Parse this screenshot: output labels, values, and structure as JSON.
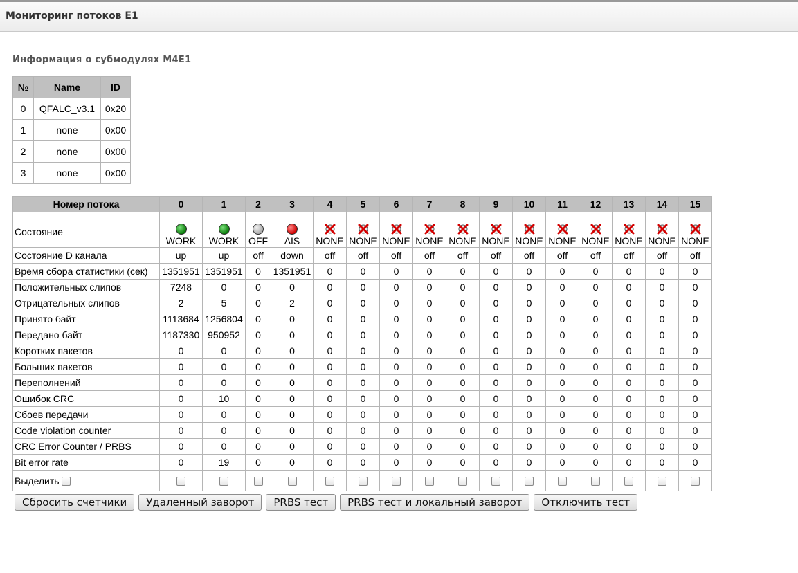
{
  "header": {
    "title": "Мониторинг потоков Е1"
  },
  "submodules": {
    "title": "Информация о субмодулях М4Е1",
    "columns": [
      "№",
      "Name",
      "ID"
    ],
    "rows": [
      [
        "0",
        "QFALC_v3.1",
        "0x20"
      ],
      [
        "1",
        "none",
        "0x00"
      ],
      [
        "2",
        "none",
        "0x00"
      ],
      [
        "3",
        "none",
        "0x00"
      ]
    ]
  },
  "streams": {
    "header_label": "Номер потока",
    "stream_numbers": [
      "0",
      "1",
      "2",
      "3",
      "4",
      "5",
      "6",
      "7",
      "8",
      "9",
      "10",
      "11",
      "12",
      "13",
      "14",
      "15"
    ],
    "state_label": "Состояние",
    "states": [
      {
        "text": "WORK",
        "icon": "led-green"
      },
      {
        "text": "WORK",
        "icon": "led-green"
      },
      {
        "text": "OFF",
        "icon": "led-gray"
      },
      {
        "text": "AIS",
        "icon": "led-red"
      },
      {
        "text": "NONE",
        "icon": "cross-icon"
      },
      {
        "text": "NONE",
        "icon": "cross-icon"
      },
      {
        "text": "NONE",
        "icon": "cross-icon"
      },
      {
        "text": "NONE",
        "icon": "cross-icon"
      },
      {
        "text": "NONE",
        "icon": "cross-icon"
      },
      {
        "text": "NONE",
        "icon": "cross-icon"
      },
      {
        "text": "NONE",
        "icon": "cross-icon"
      },
      {
        "text": "NONE",
        "icon": "cross-icon"
      },
      {
        "text": "NONE",
        "icon": "cross-icon"
      },
      {
        "text": "NONE",
        "icon": "cross-icon"
      },
      {
        "text": "NONE",
        "icon": "cross-icon"
      },
      {
        "text": "NONE",
        "icon": "cross-icon"
      }
    ],
    "rows": [
      {
        "label": "Состояние D канала",
        "values": [
          "up",
          "up",
          "off",
          "down",
          "off",
          "off",
          "off",
          "off",
          "off",
          "off",
          "off",
          "off",
          "off",
          "off",
          "off",
          "off"
        ]
      },
      {
        "label": "Время сбора статистики (сек)",
        "values": [
          "1351951",
          "1351951",
          "0",
          "1351951",
          "0",
          "0",
          "0",
          "0",
          "0",
          "0",
          "0",
          "0",
          "0",
          "0",
          "0",
          "0"
        ]
      },
      {
        "label": "Положительных слипов",
        "values": [
          "7248",
          "0",
          "0",
          "0",
          "0",
          "0",
          "0",
          "0",
          "0",
          "0",
          "0",
          "0",
          "0",
          "0",
          "0",
          "0"
        ]
      },
      {
        "label": "Отрицательных слипов",
        "values": [
          "2",
          "5",
          "0",
          "2",
          "0",
          "0",
          "0",
          "0",
          "0",
          "0",
          "0",
          "0",
          "0",
          "0",
          "0",
          "0"
        ]
      },
      {
        "label": "Принято байт",
        "values": [
          "1113684",
          "1256804",
          "0",
          "0",
          "0",
          "0",
          "0",
          "0",
          "0",
          "0",
          "0",
          "0",
          "0",
          "0",
          "0",
          "0"
        ]
      },
      {
        "label": "Передано байт",
        "values": [
          "1187330",
          "950952",
          "0",
          "0",
          "0",
          "0",
          "0",
          "0",
          "0",
          "0",
          "0",
          "0",
          "0",
          "0",
          "0",
          "0"
        ]
      },
      {
        "label": "Коротких пакетов",
        "values": [
          "0",
          "0",
          "0",
          "0",
          "0",
          "0",
          "0",
          "0",
          "0",
          "0",
          "0",
          "0",
          "0",
          "0",
          "0",
          "0"
        ]
      },
      {
        "label": "Больших пакетов",
        "values": [
          "0",
          "0",
          "0",
          "0",
          "0",
          "0",
          "0",
          "0",
          "0",
          "0",
          "0",
          "0",
          "0",
          "0",
          "0",
          "0"
        ]
      },
      {
        "label": "Переполнений",
        "values": [
          "0",
          "0",
          "0",
          "0",
          "0",
          "0",
          "0",
          "0",
          "0",
          "0",
          "0",
          "0",
          "0",
          "0",
          "0",
          "0"
        ]
      },
      {
        "label": "Ошибок CRC",
        "values": [
          "0",
          "10",
          "0",
          "0",
          "0",
          "0",
          "0",
          "0",
          "0",
          "0",
          "0",
          "0",
          "0",
          "0",
          "0",
          "0"
        ]
      },
      {
        "label": "Сбоев передачи",
        "values": [
          "0",
          "0",
          "0",
          "0",
          "0",
          "0",
          "0",
          "0",
          "0",
          "0",
          "0",
          "0",
          "0",
          "0",
          "0",
          "0"
        ]
      },
      {
        "label": "Code violation counter",
        "values": [
          "0",
          "0",
          "0",
          "0",
          "0",
          "0",
          "0",
          "0",
          "0",
          "0",
          "0",
          "0",
          "0",
          "0",
          "0",
          "0"
        ]
      },
      {
        "label": "CRC Error Counter / PRBS",
        "values": [
          "0",
          "0",
          "0",
          "0",
          "0",
          "0",
          "0",
          "0",
          "0",
          "0",
          "0",
          "0",
          "0",
          "0",
          "0",
          "0"
        ]
      },
      {
        "label": "Bit error rate",
        "values": [
          "0",
          "19",
          "0",
          "0",
          "0",
          "0",
          "0",
          "0",
          "0",
          "0",
          "0",
          "0",
          "0",
          "0",
          "0",
          "0"
        ]
      }
    ],
    "select_label": "Выделить"
  },
  "buttons": {
    "reset": "Сбросить счетчики",
    "remote_loop": "Удаленный заворот",
    "prbs": "PRBS тест",
    "prbs_local": "PRBS тест и локальный заворот",
    "stop": "Отключить тест"
  },
  "colors": {
    "header_bg": "#c0c0c0",
    "led_green": "#0a7d0a",
    "led_red": "#d00000",
    "led_gray": "#a8a8a8",
    "cross": "#d40000"
  }
}
